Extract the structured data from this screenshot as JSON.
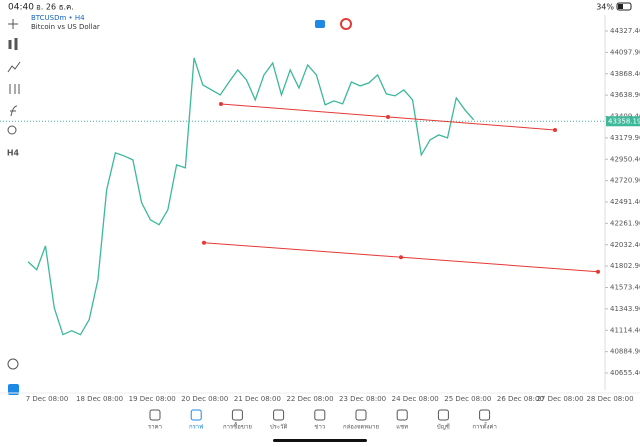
{
  "status_bar": {
    "time": "04:40",
    "date": "อ. 26 ธ.ค.",
    "battery": "34%"
  },
  "symbol": {
    "name": "BTCUSDm • H4",
    "description": "Bitcoin vs US Dollar"
  },
  "timeframe": "H4",
  "chart_data": {
    "type": "line",
    "color": "#3cb89a",
    "values": [
      41850,
      41764,
      42020,
      41356,
      41067,
      41110,
      41067,
      41228,
      41656,
      42622,
      43019,
      42986,
      42944,
      42483,
      42300,
      42247,
      42408,
      42890,
      42858,
      44038,
      43748,
      43695,
      43641,
      43780,
      43909,
      43802,
      43588,
      43856,
      43984,
      43641,
      43909,
      43716,
      43963,
      43856,
      43534,
      43577,
      43545,
      43780,
      43738,
      43770,
      43856,
      43652,
      43631,
      43695,
      43588,
      42997,
      43158,
      43212,
      43180,
      43609,
      43480,
      43373
    ],
    "x_labels": [
      "7 Dec 08:00",
      "18 Dec 08:00",
      "19 Dec 08:00",
      "20 Dec 08:00",
      "21 Dec 08:00",
      "22 Dec 08:00",
      "23 Dec 08:00",
      "24 Dec 08:00",
      "25 Dec 08:00",
      "26 Dec 08:00",
      "27 Dec 08:00",
      "28 Dec 08:00"
    ],
    "ylim": [
      40655.4,
      44327.4
    ],
    "yticks": [
      {
        "value": 44327.4,
        "label": "44327.40"
      },
      {
        "value": 44097.9,
        "label": "44097.90"
      },
      {
        "value": 43868.4,
        "label": "43868.40"
      },
      {
        "value": 43638.9,
        "label": "43638.90"
      },
      {
        "value": 43409.4,
        "label": "43409.40"
      },
      {
        "value": 43179.9,
        "label": "43179.90"
      },
      {
        "value": 42950.4,
        "label": "42950.40"
      },
      {
        "value": 42720.9,
        "label": "42720.90"
      },
      {
        "value": 42491.4,
        "label": "42491.40"
      },
      {
        "value": 42261.9,
        "label": "42261.90"
      },
      {
        "value": 42032.4,
        "label": "42032.40"
      },
      {
        "value": 41802.9,
        "label": "41802.90"
      },
      {
        "value": 41573.4,
        "label": "41573.40"
      },
      {
        "value": 41343.9,
        "label": "41343.90"
      },
      {
        "value": 41114.4,
        "label": "41114.40"
      },
      {
        "value": 40884.9,
        "label": "40884.90"
      },
      {
        "value": 40655.4,
        "label": "40655.40"
      }
    ],
    "current_price": 43358.19,
    "trendlines": [
      {
        "color": "#e53935",
        "values": [
          43544,
          43265
        ]
      },
      {
        "color": "#e53935",
        "values": [
          42054,
          41743
        ]
      }
    ]
  },
  "nav": [
    "ราคา",
    "กราฟ",
    "การซื้อขาย",
    "ประวัติ",
    "ข่าว",
    "กล่องจดหมาย",
    "แชท",
    "บัญชี",
    "การตั้งค่า"
  ]
}
